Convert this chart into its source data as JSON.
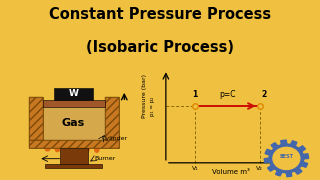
{
  "bg_color": "#F0C040",
  "title_line1": "Constant Pressure Process",
  "title_line2": "(Isobaric Process)",
  "title_fontsize": 10.5,
  "title_color": "#000000",
  "axis_xlabel": "Volume m³",
  "axis_ylabel": "Pressure (bar)",
  "p_label": "p₁ = p₂",
  "process_label": "p=C",
  "point1_label": "1",
  "point2_label": "2",
  "v1_label": "V₁",
  "v2_label": "V₂",
  "v1": 0.25,
  "v2": 0.8,
  "pressure_val": 0.62,
  "line_color": "#CC1100",
  "dashed_color": "#8B6A00",
  "point_color": "#DD8800",
  "wall_color": "#C87820",
  "wall_hatch_color": "#7B4A08",
  "gas_color": "#D4A84B",
  "piston_color": "#A05828",
  "weight_color": "#111111",
  "burner_color": "#7B3A0A",
  "flame_color": "#DD4400"
}
